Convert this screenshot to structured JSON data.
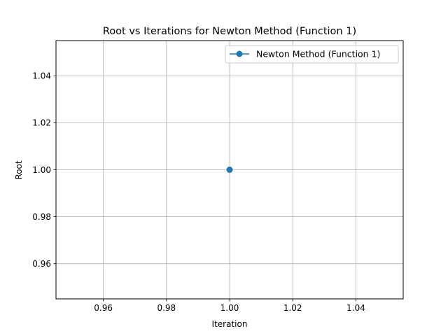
{
  "chart_data": {
    "type": "line",
    "title": "Root vs Iterations for Newton Method (Function 1)",
    "xlabel": "Iteration",
    "ylabel": "Root",
    "xlim": [
      0.945,
      1.055
    ],
    "ylim": [
      0.945,
      1.055
    ],
    "xticks": [
      0.96,
      0.98,
      1.0,
      1.02,
      1.04
    ],
    "xtick_labels": [
      "0.96",
      "0.98",
      "1.00",
      "1.02",
      "1.04"
    ],
    "yticks": [
      0.96,
      0.98,
      1.0,
      1.02,
      1.04
    ],
    "ytick_labels": [
      "0.96",
      "0.98",
      "1.00",
      "1.02",
      "1.04"
    ],
    "grid": true,
    "legend_position": "top-right",
    "series": [
      {
        "name": "Newton Method (Function 1)",
        "color": "#1f77b4",
        "marker": "circle",
        "x": [
          1.0
        ],
        "y": [
          1.0
        ]
      }
    ]
  }
}
